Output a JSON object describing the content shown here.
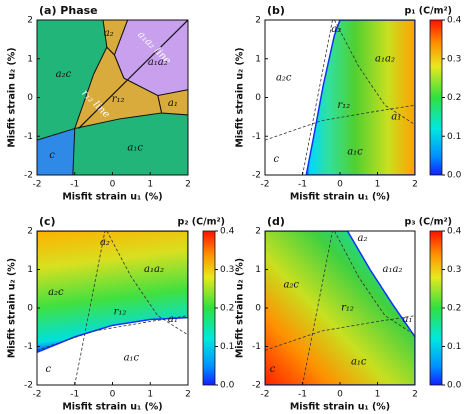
{
  "chart_data": [
    {
      "type": "phase",
      "title": "(a) Phase",
      "xlabel": "Misfit strain u₁ (%)",
      "ylabel": "Misfit strain u₂ (%)",
      "xlim": [
        -2,
        2
      ],
      "ylim": [
        -2,
        2
      ],
      "xticks": [
        -2,
        -1,
        0,
        1,
        2
      ],
      "yticks": [
        -2,
        -1,
        0,
        1,
        2
      ],
      "regions": [
        "a₂",
        "a₁a₂",
        "a₂c",
        "r₁₂",
        "a₁",
        "c",
        "a₁c"
      ],
      "annotations": [
        "r₁₂ line",
        "a₁a₂ line"
      ]
    },
    {
      "type": "heatmap",
      "title": "(b)",
      "colorbar_label": "p₁ (C/m²)",
      "xlabel": "Misfit strain u₁ (%)",
      "ylabel": "Misfit strain u₂ (%)",
      "xlim": [
        -2,
        2
      ],
      "ylim": [
        -2,
        2
      ],
      "xticks": [
        -2,
        -1,
        0,
        1,
        2
      ],
      "yticks": [
        -2,
        -1,
        0,
        1,
        2
      ],
      "clim": [
        0,
        0.4
      ],
      "cticks": [
        {
          "value": 0,
          "label": "0.0"
        },
        0.1,
        0.2,
        0.3,
        0.4
      ],
      "regions": [
        "a₂",
        "a₁a₂",
        "a₂c",
        "r₁₂",
        "a₁",
        "c",
        "a₁c"
      ]
    },
    {
      "type": "heatmap",
      "title": "(c)",
      "colorbar_label": "p₂ (C/m²)",
      "xlabel": "Misfit strain u₁ (%)",
      "ylabel": "Misfit strain u₂ (%)",
      "xlim": [
        -2,
        2
      ],
      "ylim": [
        -2,
        2
      ],
      "xticks": [
        -2,
        -1,
        0,
        1,
        2
      ],
      "yticks": [
        -2,
        -1,
        0,
        1,
        2
      ],
      "clim": [
        0,
        0.4
      ],
      "cticks": [
        {
          "value": 0,
          "label": "0.0"
        },
        0.1,
        0.2,
        0.3,
        0.4
      ],
      "regions": [
        "a₂",
        "a₁a₂",
        "a₂c",
        "r₁₂",
        "a₁",
        "c",
        "a₁c"
      ]
    },
    {
      "type": "heatmap",
      "title": "(d)",
      "colorbar_label": "p₃ (C/m²)",
      "xlabel": "Misfit strain u₁ (%)",
      "ylabel": "Misfit strain u₂ (%)",
      "xlim": [
        -2,
        2
      ],
      "ylim": [
        -2,
        2
      ],
      "xticks": [
        -2,
        -1,
        0,
        1,
        2
      ],
      "yticks": [
        -2,
        -1,
        0,
        1,
        2
      ],
      "clim": [
        0,
        0.4
      ],
      "cticks": [
        {
          "value": 0,
          "label": "0.0"
        },
        0.1,
        0.2,
        0.3,
        0.4
      ],
      "regions": [
        "a₂",
        "a₁a₂",
        "a₂c",
        "r₁₂",
        "a₁",
        "c",
        "a₁c"
      ]
    }
  ]
}
